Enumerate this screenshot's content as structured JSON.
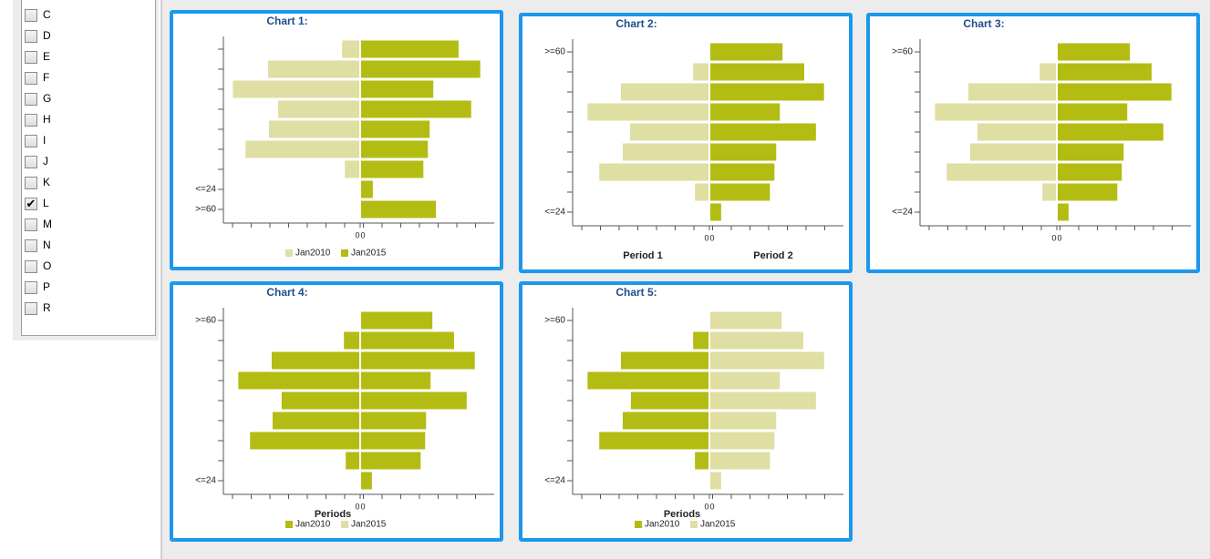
{
  "sidebar": {
    "items": [
      {
        "label": "C",
        "checked": false
      },
      {
        "label": "D",
        "checked": false
      },
      {
        "label": "E",
        "checked": false
      },
      {
        "label": "F",
        "checked": false
      },
      {
        "label": "G",
        "checked": false
      },
      {
        "label": "H",
        "checked": false
      },
      {
        "label": "I",
        "checked": false
      },
      {
        "label": "J",
        "checked": false
      },
      {
        "label": "K",
        "checked": false
      },
      {
        "label": "L",
        "checked": true
      },
      {
        "label": "M",
        "checked": false
      },
      {
        "label": "N",
        "checked": false
      },
      {
        "label": "O",
        "checked": false
      },
      {
        "label": "P",
        "checked": false
      },
      {
        "label": "R",
        "checked": false
      }
    ]
  },
  "chart_data": [
    {
      "type": "butterfly",
      "title": "Chart 1:",
      "categories": [
        null,
        null,
        null,
        null,
        null,
        null,
        null,
        "<=24",
        ">=60"
      ],
      "xlim": [
        -150,
        150
      ],
      "xticks": [
        0,
        0
      ],
      "legend": true,
      "series": [
        {
          "name": "Jan2010",
          "color": "#dfdea3",
          "side": "left",
          "values": [
            20,
            102,
            141,
            91,
            101,
            127,
            17,
            0,
            0
          ]
        },
        {
          "name": "Jan2015",
          "color": "#b3bc13",
          "side": "right",
          "values": [
            109,
            133,
            81,
            123,
            77,
            75,
            70,
            14,
            84
          ]
        }
      ]
    },
    {
      "type": "butterfly",
      "title": "Chart 2:",
      "categories": [
        ">=60",
        null,
        null,
        null,
        null,
        null,
        null,
        null,
        "<=24"
      ],
      "xlim": [
        -150,
        150
      ],
      "xticks": [
        0,
        0
      ],
      "legend": false,
      "axis_labels": [
        "Period 1",
        "Period 2"
      ],
      "series": [
        {
          "name": "Jan2010",
          "color": "#dfdea3",
          "side": "left",
          "values": [
            0,
            18,
            98,
            135,
            88,
            96,
            122,
            16,
            0
          ]
        },
        {
          "name": "Jan2015",
          "color": "#b3bc13",
          "side": "right",
          "values": [
            81,
            105,
            127,
            78,
            118,
            74,
            72,
            67,
            13
          ]
        }
      ]
    },
    {
      "type": "butterfly",
      "title": "Chart 3:",
      "categories": [
        ">=60",
        null,
        null,
        null,
        null,
        null,
        null,
        null,
        "<=24"
      ],
      "xlim": [
        -150,
        150
      ],
      "xticks": [
        0,
        0
      ],
      "legend": false,
      "series": [
        {
          "name": "Jan2010",
          "color": "#dfdea3",
          "side": "left",
          "values": [
            0,
            19,
            98,
            135,
            88,
            96,
            122,
            16,
            0
          ]
        },
        {
          "name": "Jan2015",
          "color": "#b3bc13",
          "side": "right",
          "values": [
            81,
            105,
            127,
            78,
            118,
            74,
            72,
            67,
            13
          ]
        }
      ]
    },
    {
      "type": "butterfly",
      "title": "Chart 4:",
      "categories": [
        ">=60",
        null,
        null,
        null,
        null,
        null,
        null,
        null,
        "<=24"
      ],
      "xlim": [
        -150,
        150
      ],
      "xticks": [
        0,
        0
      ],
      "legend": true,
      "xlabel": "Periods",
      "bar_color": "#b3bc13",
      "series": [
        {
          "name": "Jan2010",
          "color": "#b3bc13",
          "side": "left",
          "values": [
            0,
            18,
            98,
            135,
            87,
            97,
            122,
            16,
            0
          ]
        },
        {
          "name": "Jan2015",
          "color": "#dfdea3",
          "side": "right",
          "values": [
            80,
            104,
            127,
            78,
            118,
            73,
            72,
            67,
            13
          ]
        }
      ]
    },
    {
      "type": "butterfly",
      "title": "Chart 5:",
      "categories": [
        ">=60",
        null,
        null,
        null,
        null,
        null,
        null,
        null,
        "<=24"
      ],
      "xlim": [
        -150,
        150
      ],
      "xticks": [
        0,
        0
      ],
      "legend": true,
      "xlabel": "Periods",
      "series": [
        {
          "name": "Jan2010",
          "color": "#b3bc13",
          "side": "left",
          "values": [
            0,
            18,
            98,
            135,
            87,
            96,
            122,
            16,
            0
          ]
        },
        {
          "name": "Jan2015",
          "color": "#dfdea3",
          "side": "right",
          "values": [
            80,
            104,
            127,
            78,
            118,
            74,
            72,
            67,
            13
          ]
        }
      ]
    }
  ]
}
